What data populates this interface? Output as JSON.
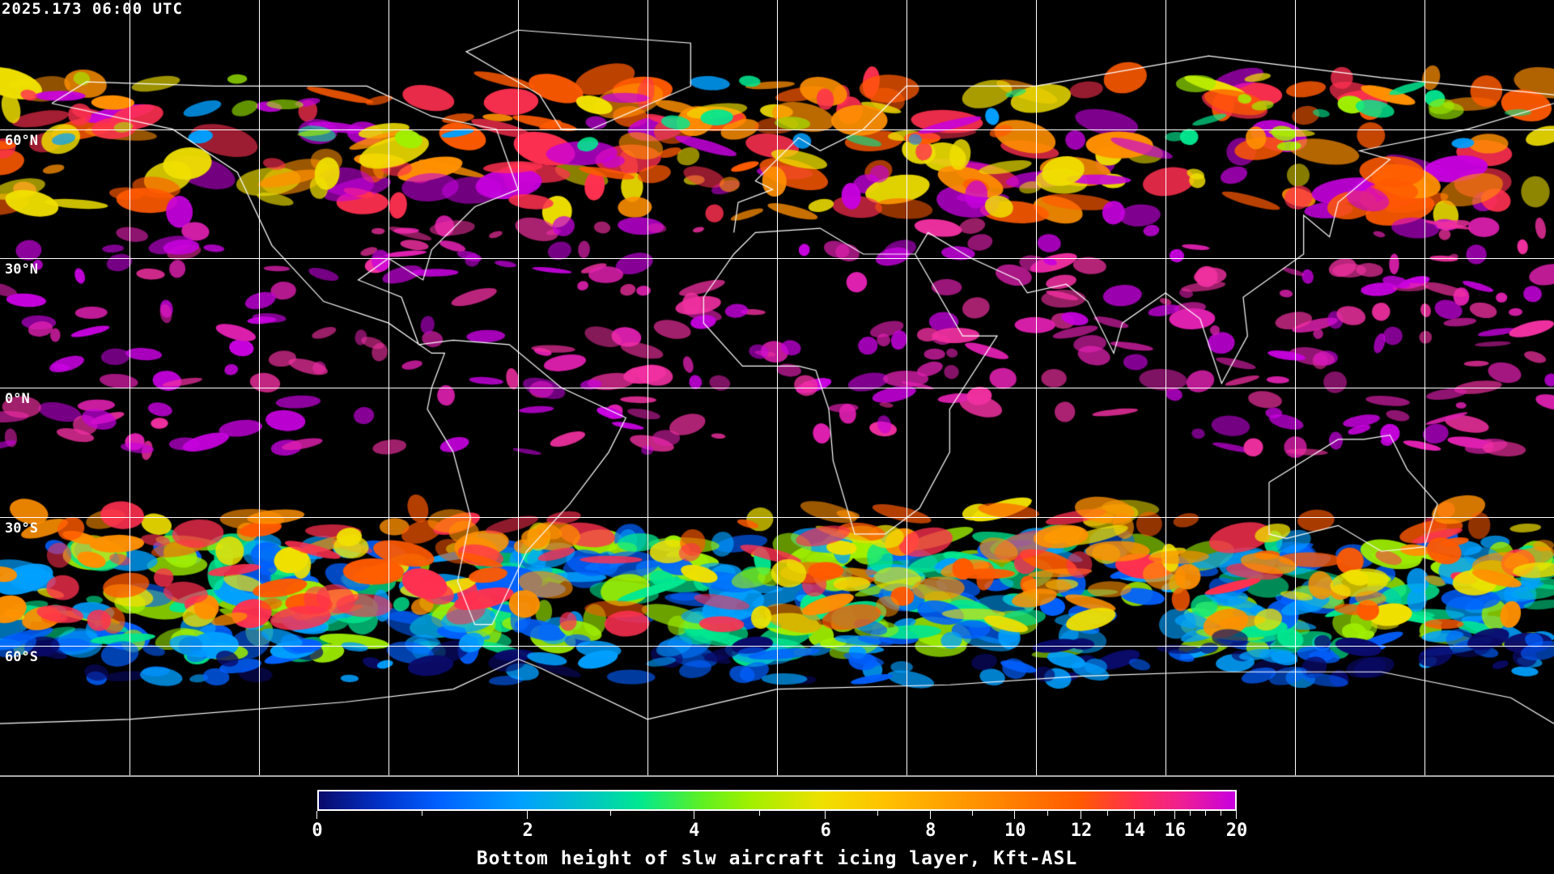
{
  "header": {
    "timestamp": "2025.173 06:00 UTC"
  },
  "map": {
    "projection": "equirectangular",
    "gridlines": true,
    "lat_labels": [
      "60°N",
      "30°N",
      "0°N",
      "30°S",
      "60°S"
    ],
    "lat_values": [
      60,
      30,
      0,
      -30,
      -60
    ],
    "lon_grid_step_deg": 30,
    "coastline_color": "#ffffff"
  },
  "colorbar": {
    "title": "Bottom height of slw aircraft icing layer, Kft-ASL",
    "range": [
      0,
      20
    ],
    "tick_labels": [
      "0",
      "2",
      "4",
      "6",
      "8",
      "10",
      "12",
      "14",
      "16",
      "20"
    ],
    "colors": [
      "#0a0a6a",
      "#0060ff",
      "#00a0ff",
      "#00e890",
      "#a0f000",
      "#f0e000",
      "#ff9000",
      "#ff5a00",
      "#ff3050",
      "#c800e0"
    ]
  }
}
